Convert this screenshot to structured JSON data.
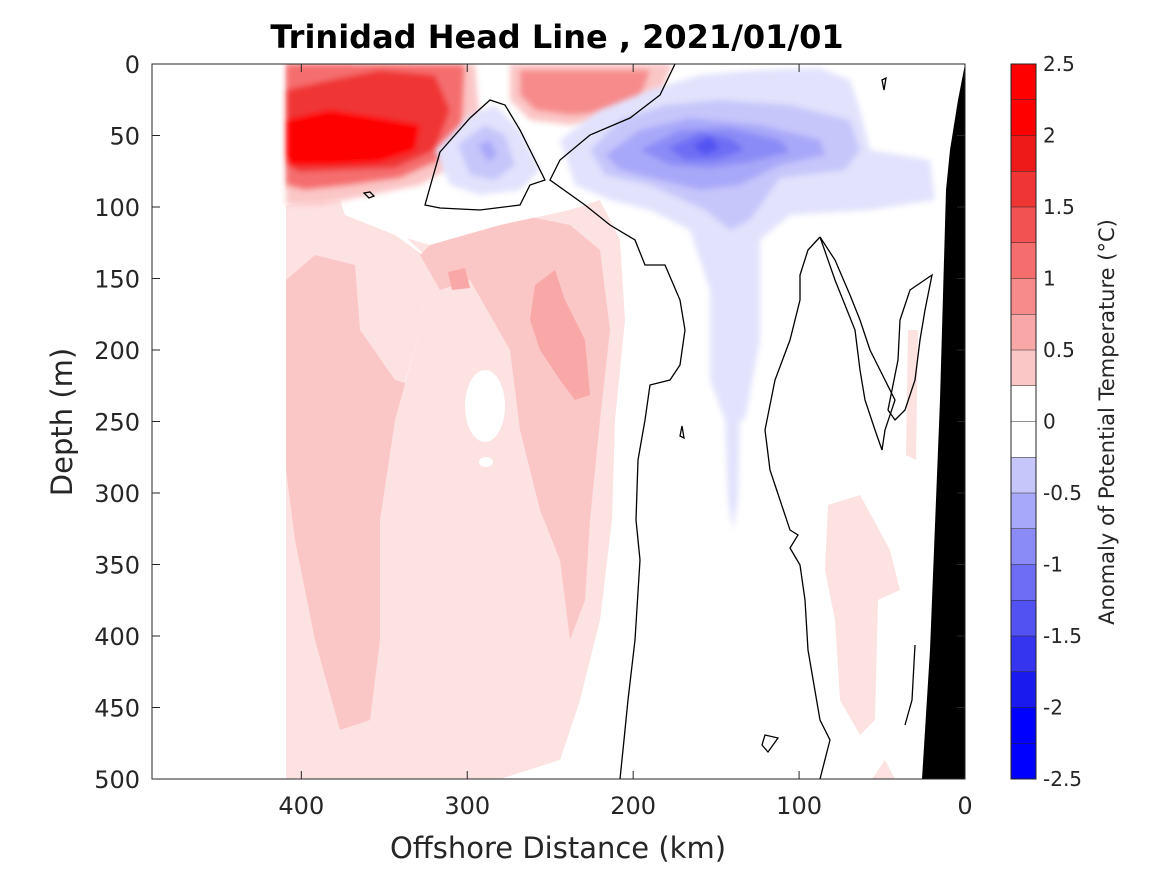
{
  "chart_data": {
    "type": "heatmap",
    "title": "Trinidad Head Line , 2021/01/01",
    "xlabel": "Offshore Distance (km)",
    "ylabel": "Depth (m)",
    "xlim": [
      490,
      0
    ],
    "ylim": [
      0,
      500
    ],
    "x_ticks": [
      "400",
      "300",
      "200",
      "100",
      "0"
    ],
    "y_ticks": [
      "0",
      "50",
      "100",
      "150",
      "200",
      "250",
      "300",
      "350",
      "400",
      "450",
      "500"
    ],
    "grid": false,
    "colorbar": {
      "label": "Anomaly of Potential Temperature (°C)",
      "range": [
        -2.5,
        2.5
      ],
      "step": 0.25,
      "ticks": [
        "2.5",
        "2",
        "1.5",
        "1",
        "0.5",
        "0",
        "-0.5",
        "-1",
        "-1.5",
        "-2",
        "-2.5"
      ],
      "colors_positive": [
        "#fde2e2",
        "#fbc6c6",
        "#f9a8a8",
        "#f78b8b",
        "#f56e6e",
        "#f35252",
        "#f03535",
        "#ee1a1a",
        "#ff0000"
      ],
      "colors_negative": [
        "#e2e2fd",
        "#c6c6fb",
        "#a8a8f9",
        "#8b8bf7",
        "#6e6ef5",
        "#5252f3",
        "#3535f0",
        "#1a1aee",
        "#0000ff"
      ]
    },
    "data_extent_km": [
      410,
      0
    ],
    "anomaly_regions": [
      {
        "name": "surface warm core offshore",
        "distance_km": [
          410,
          300
        ],
        "depth_m": [
          0,
          90
        ],
        "max_anomaly": 2.5
      },
      {
        "name": "surface warm patch mid-shelf",
        "distance_km": [
          275,
          205
        ],
        "depth_m": [
          0,
          40
        ],
        "max_anomaly": 1.25
      },
      {
        "name": "subsurface cool eddy",
        "distance_km": [
          320,
          265
        ],
        "depth_m": [
          30,
          95
        ],
        "min_anomaly": -0.75
      },
      {
        "name": "subsurface cool core inshore",
        "distance_km": [
          260,
          80
        ],
        "depth_m": [
          10,
          110
        ],
        "min_anomaly": -1.75
      },
      {
        "name": "deep warm band offshore",
        "distance_km": [
          410,
          320
        ],
        "depth_m": [
          150,
          450
        ],
        "max_anomaly": 0.75
      },
      {
        "name": "deep warm band mid",
        "distance_km": [
          300,
          210
        ],
        "depth_m": [
          110,
          450
        ],
        "max_anomaly": 1.0
      }
    ],
    "zero_contour": true,
    "bathymetry_fill": "#000000"
  }
}
